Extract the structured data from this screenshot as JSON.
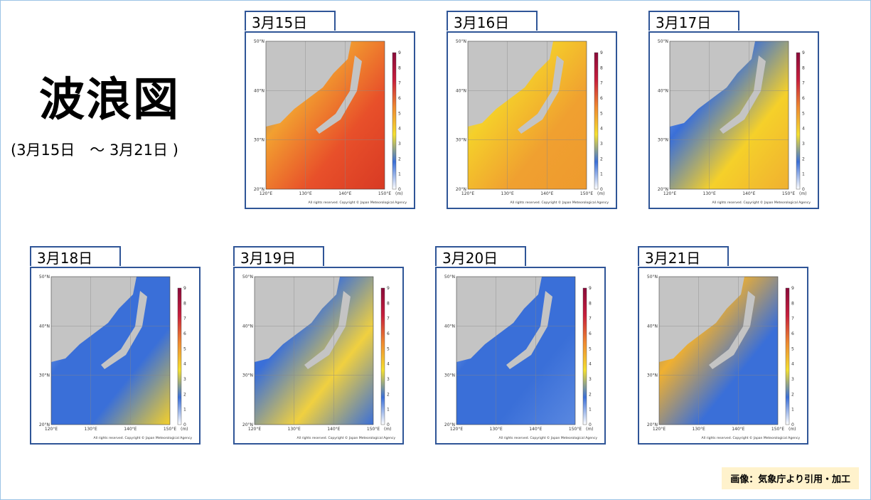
{
  "header": {
    "title": "波浪図",
    "subtitle": "(3月15日　～ 3月21日 )"
  },
  "panels": [
    {
      "date": "3月15日"
    },
    {
      "date": "3月16日"
    },
    {
      "date": "3月17日"
    },
    {
      "date": "3月18日"
    },
    {
      "date": "3月19日"
    },
    {
      "date": "3月20日"
    },
    {
      "date": "3月21日"
    }
  ],
  "map_axes": {
    "lat_labels": [
      "50°N",
      "40°N",
      "30°N",
      "20°N"
    ],
    "lon_labels": [
      "120°E",
      "130°E",
      "140°E",
      "150°E"
    ],
    "colorbar_ticks": [
      0,
      1,
      2,
      3,
      4,
      5,
      6,
      7,
      8,
      9
    ],
    "unit": "(m)",
    "copyright": "All rights reserved. Copyright © Japan Meteorological Agency"
  },
  "credit": "画像：気象庁より引用・加工"
}
